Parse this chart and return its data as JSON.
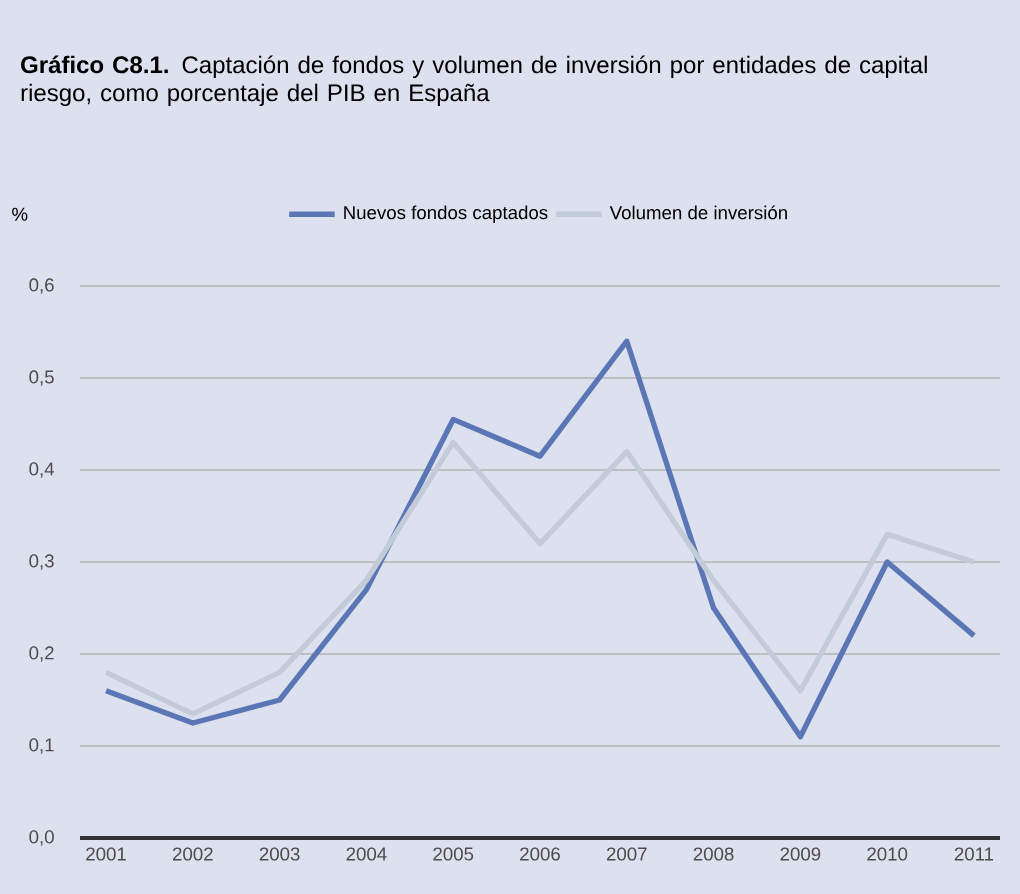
{
  "chart_data": {
    "type": "line",
    "title": "**Gráfico C8.1.** Captación de fondos y volumen de inversión por entidades de capital riesgo, como porcentaje del PIB en España",
    "ylabel": "%",
    "categories": [
      "2001",
      "2002",
      "2003",
      "2004",
      "2005",
      "2006",
      "2007",
      "2008",
      "2009",
      "2010",
      "2011"
    ],
    "series": [
      {
        "name": "Nuevos fondos captados",
        "color": "#5b76b5",
        "values": [
          0.16,
          0.125,
          0.15,
          0.27,
          0.455,
          0.415,
          0.54,
          0.25,
          0.11,
          0.3,
          0.22
        ]
      },
      {
        "name": "Volumen de inversión",
        "color": "#c3cad8",
        "values": [
          0.18,
          0.135,
          0.18,
          0.28,
          0.43,
          0.32,
          0.42,
          0.28,
          0.16,
          0.33,
          0.3
        ]
      }
    ],
    "ylim": [
      0,
      0.6
    ],
    "yticks": [
      {
        "value": 0,
        "label": "0,0"
      },
      {
        "value": 0.1,
        "label": "0,1"
      },
      {
        "value": 0.2,
        "label": "0,2"
      },
      {
        "value": 0.3,
        "label": "0,3"
      },
      {
        "value": 0.4,
        "label": "0,4"
      },
      {
        "value": 0.5,
        "label": "0,5"
      },
      {
        "value": 0.6,
        "label": "0,6"
      }
    ],
    "grid": "y",
    "legend": "top",
    "marker": "none",
    "line_style": "solid"
  }
}
